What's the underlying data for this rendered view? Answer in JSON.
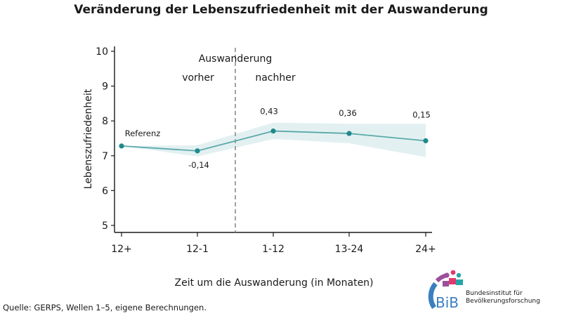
{
  "title": "Veränderung der Lebenszufriedenheit mit der Auswanderung",
  "source": "Quelle: GERPS, Wellen 1–5, eigene Berechnungen.",
  "logo": {
    "mark": "BiB",
    "line1": "Bundesinstitut für",
    "line2": "Bevölkerungsforschung"
  },
  "chart_data": {
    "type": "line",
    "title": "Veränderung der Lebenszufriedenheit mit der Auswanderung",
    "xlabel": "Zeit um die Auswanderung (in Monaten)",
    "ylabel": "Lebenszufriedenheit",
    "categories": [
      "12+",
      "12-1",
      "1-12",
      "13-24",
      "24+"
    ],
    "ylim": [
      5,
      10
    ],
    "yticks": [
      5,
      6,
      7,
      8,
      9,
      10
    ],
    "series": [
      {
        "values": [
          7.28,
          7.14,
          7.71,
          7.64,
          7.43
        ],
        "ci_low": [
          7.28,
          6.98,
          7.48,
          7.36,
          6.96
        ],
        "ci_high": [
          7.28,
          7.3,
          7.95,
          7.92,
          7.92
        ],
        "point_labels": [
          "Referenz",
          "-0,14",
          "0,43",
          "0,36",
          "0,15"
        ],
        "color": "#5aaaa8",
        "band_color": "#e3f0f2",
        "marker_color": "#1e8a8a"
      }
    ],
    "annotations": {
      "divider": "Auswanderung",
      "before": "vorher",
      "after": "nachher"
    },
    "grid": false
  }
}
